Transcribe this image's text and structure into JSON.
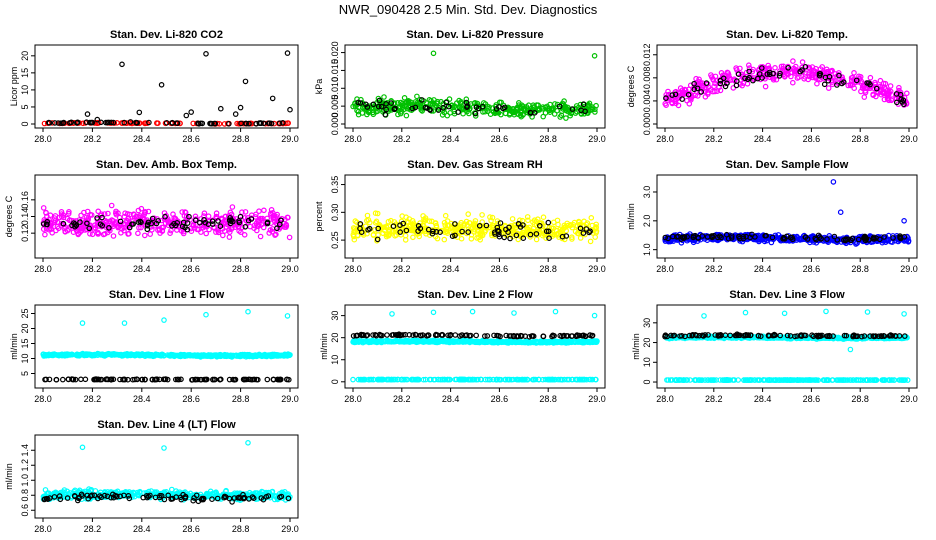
{
  "title": "NWR_090428  2.5 Min. Std. Dev. Diagnostics",
  "colors": {
    "black": "#000000",
    "red": "#ff0000",
    "green": "#00c000",
    "magenta": "#ff00ff",
    "yellow": "#ffff00",
    "blue": "#0000ff",
    "cyan": "#00ffff"
  },
  "chart_data": [
    {
      "type": "scatter",
      "title": "Stan. Dev. Li-820 CO2",
      "ylabel": "Licor ppm",
      "xlim": [
        28.0,
        29.0
      ],
      "ylim": [
        0,
        22
      ],
      "xticks": [
        "28.0",
        "28.2",
        "28.4",
        "28.6",
        "28.8",
        "29.0"
      ],
      "yticks": [
        "0",
        "5",
        "10",
        "15",
        "20"
      ],
      "series": [
        {
          "color": "red",
          "pattern": {
            "base": 0.2,
            "amp": 0.2,
            "noise": 0.15,
            "n": 100,
            "seed": 1
          }
        },
        {
          "color": "black",
          "pattern": {
            "base": 0.3,
            "amp": 0.3,
            "noise": 0.2,
            "n": 60,
            "seed": 2
          },
          "outliers": [
            [
              28.18,
              2.9
            ],
            [
              28.22,
              1.3
            ],
            [
              28.32,
              17.5
            ],
            [
              28.39,
              3.4
            ],
            [
              28.48,
              11.5
            ],
            [
              28.58,
              2.5
            ],
            [
              28.6,
              3.5
            ],
            [
              28.66,
              20.6
            ],
            [
              28.72,
              4.5
            ],
            [
              28.78,
              2.9
            ],
            [
              28.8,
              4.8
            ],
            [
              28.82,
              12.5
            ],
            [
              28.93,
              7.5
            ],
            [
              28.99,
              20.8
            ],
            [
              29.0,
              4.2
            ]
          ]
        }
      ]
    },
    {
      "type": "scatter",
      "title": "Stan. Dev. Li-820 Pressure",
      "ylabel": "kPa",
      "xlim": [
        28.0,
        29.0
      ],
      "ylim": [
        0,
        0.021
      ],
      "xticks": [
        "28.0",
        "28.2",
        "28.4",
        "28.6",
        "28.8",
        "29.0"
      ],
      "yticks": [
        "0.000",
        "0.005",
        "0.010",
        "0.015",
        "0.020"
      ],
      "series": [
        {
          "color": "green",
          "pattern": {
            "base": 0.0045,
            "amp": 0.001,
            "noise": 0.003,
            "n": 360,
            "seed": 3
          },
          "outliers": [
            [
              28.33,
              0.0198
            ],
            [
              28.99,
              0.0191
            ]
          ]
        },
        {
          "color": "black",
          "pattern": {
            "base": 0.0045,
            "amp": 0.001,
            "noise": 0.003,
            "n": 45,
            "seed": 4
          }
        }
      ]
    },
    {
      "type": "scatter",
      "title": "Stan. Dev. Li-820 Temp.",
      "ylabel": "degrees C",
      "xlim": [
        28.0,
        29.0
      ],
      "ylim": [
        0,
        0.013
      ],
      "xticks": [
        "28.0",
        "28.2",
        "28.4",
        "28.6",
        "28.8",
        "29.0"
      ],
      "yticks": [
        "0.000",
        "0.004",
        "0.008",
        "0.012"
      ],
      "series": [
        {
          "color": "magenta",
          "pattern": {
            "base": 0.004,
            "amp": 0.005,
            "shape": "arch",
            "noise": 0.0025,
            "n": 380,
            "seed": 5
          }
        },
        {
          "color": "black",
          "pattern": {
            "base": 0.004,
            "amp": 0.005,
            "shape": "arch",
            "noise": 0.0018,
            "n": 60,
            "seed": 6
          }
        }
      ]
    },
    {
      "type": "scatter",
      "title": "Stan. Dev. Amb. Box Temp.",
      "ylabel": "degrees C",
      "xlim": [
        28.0,
        29.0
      ],
      "ylim": [
        0.095,
        0.185
      ],
      "xticks": [
        "28.0",
        "28.2",
        "28.4",
        "28.6",
        "28.8",
        "29.0"
      ],
      "yticks": [
        "0.12",
        "0.14",
        "0.16"
      ],
      "series": [
        {
          "color": "magenta",
          "pattern": {
            "base": 0.133,
            "amp": 0.0,
            "noise": 0.022,
            "n": 420,
            "seed": 7
          }
        },
        {
          "color": "black",
          "pattern": {
            "base": 0.131,
            "amp": 0.0,
            "noise": 0.012,
            "n": 70,
            "seed": 8
          }
        }
      ]
    },
    {
      "type": "scatter",
      "title": "Stan. Dev. Gas Stream RH",
      "ylabel": "percent",
      "xlim": [
        28.0,
        29.0
      ],
      "ylim": [
        0.225,
        0.36
      ],
      "xticks": [
        "28.0",
        "28.2",
        "28.4",
        "28.6",
        "28.8",
        "29.0"
      ],
      "yticks": [
        "0.25",
        "0.30",
        "0.35"
      ],
      "series": [
        {
          "color": "yellow",
          "pattern": {
            "base": 0.27,
            "amp": 0.0,
            "noise": 0.03,
            "n": 420,
            "seed": 9
          }
        },
        {
          "color": "black",
          "pattern": {
            "base": 0.268,
            "amp": 0.0,
            "noise": 0.022,
            "n": 60,
            "seed": 10
          }
        }
      ]
    },
    {
      "type": "scatter",
      "title": "Stan. Dev. Sample Flow",
      "ylabel": "ml/min",
      "xlim": [
        28.0,
        29.0
      ],
      "ylim": [
        0.85,
        3.45
      ],
      "xticks": [
        "28.0",
        "28.2",
        "28.4",
        "28.6",
        "28.8",
        "29.0"
      ],
      "yticks": [
        "1.0",
        "2.0",
        "3.0"
      ],
      "series": [
        {
          "color": "blue",
          "pattern": {
            "base": 1.38,
            "amp": 0.08,
            "noise": 0.17,
            "n": 480,
            "seed": 11
          },
          "outliers": [
            [
              28.69,
              3.35
            ],
            [
              28.98,
              2.0
            ],
            [
              28.72,
              2.3
            ]
          ]
        },
        {
          "color": "black",
          "pattern": {
            "base": 1.42,
            "amp": 0.05,
            "noise": 0.12,
            "n": 90,
            "seed": 12
          }
        }
      ]
    },
    {
      "type": "scatter",
      "title": "Stan. Dev. Line 1 Flow",
      "ylabel": "ml/min",
      "xlim": [
        28.0,
        29.0
      ],
      "ylim": [
        1.5,
        26.5
      ],
      "xticks": [
        "28.0",
        "28.2",
        "28.4",
        "28.6",
        "28.8",
        "29.0"
      ],
      "yticks": [
        "5",
        "10",
        "15",
        "20",
        "25"
      ],
      "series": [
        {
          "color": "cyan",
          "pattern": {
            "base": 11.1,
            "amp": 0.3,
            "noise": 0.5,
            "n": 500,
            "seed": 13
          },
          "outliers": [
            [
              28.16,
              21.8
            ],
            [
              28.33,
              21.8
            ],
            [
              28.49,
              22.8
            ],
            [
              28.66,
              24.6
            ],
            [
              28.83,
              25.6
            ],
            [
              28.99,
              24.2
            ]
          ]
        },
        {
          "color": "black",
          "pattern": {
            "base": 3.0,
            "amp": 0.05,
            "noise": 0.15,
            "n": 110,
            "seed": 14
          }
        }
      ]
    },
    {
      "type": "scatter",
      "title": "Stan. Dev. Line 2 Flow",
      "ylabel": "ml/min",
      "xlim": [
        28.0,
        29.0
      ],
      "ylim": [
        -1,
        33
      ],
      "xticks": [
        "28.0",
        "28.2",
        "28.4",
        "28.6",
        "28.8",
        "29.0"
      ],
      "yticks": [
        "0",
        "10",
        "20",
        "30"
      ],
      "series": [
        {
          "color": "cyan",
          "pattern": {
            "base": 18.2,
            "amp": 0.4,
            "noise": 0.6,
            "n": 500,
            "seed": 15
          },
          "outliers": [
            [
              28.16,
              30.8
            ],
            [
              28.33,
              31.5
            ],
            [
              28.49,
              31.8
            ],
            [
              28.66,
              31.2
            ],
            [
              28.83,
              31.8
            ],
            [
              28.99,
              30.0
            ]
          ]
        },
        {
          "color": "cyan",
          "pattern": {
            "base": 1.0,
            "amp": 0.0,
            "noise": 0.1,
            "n": 200,
            "seed": 16
          }
        },
        {
          "color": "black",
          "pattern": {
            "base": 21.0,
            "amp": 0.6,
            "noise": 0.5,
            "n": 110,
            "seed": 17
          }
        }
      ]
    },
    {
      "type": "scatter",
      "title": "Stan. Dev. Line 3 Flow",
      "ylabel": "ml/min",
      "xlim": [
        28.0,
        29.0
      ],
      "ylim": [
        -1,
        37
      ],
      "xticks": [
        "28.0",
        "28.2",
        "28.4",
        "28.6",
        "28.8",
        "29.0"
      ],
      "yticks": [
        "0",
        "10",
        "20",
        "30"
      ],
      "series": [
        {
          "color": "cyan",
          "pattern": {
            "base": 22.5,
            "amp": 0.4,
            "noise": 0.7,
            "n": 500,
            "seed": 18
          },
          "outliers": [
            [
              28.16,
              33.5
            ],
            [
              28.33,
              35.2
            ],
            [
              28.49,
              34.8
            ],
            [
              28.66,
              35.8
            ],
            [
              28.76,
              16.5
            ],
            [
              28.83,
              35.5
            ],
            [
              28.98,
              34.5
            ]
          ]
        },
        {
          "color": "cyan",
          "pattern": {
            "base": 1.0,
            "amp": 0.0,
            "noise": 0.1,
            "n": 200,
            "seed": 19
          }
        },
        {
          "color": "black",
          "pattern": {
            "base": 23.5,
            "amp": 0.4,
            "noise": 0.6,
            "n": 110,
            "seed": 20
          }
        }
      ]
    },
    {
      "type": "scatter",
      "title": "Stan. Dev. Line 4 (LT) Flow",
      "ylabel": "ml/min",
      "xlim": [
        28.0,
        29.0
      ],
      "ylim": [
        0.55,
        1.55
      ],
      "xticks": [
        "28.0",
        "28.2",
        "28.4",
        "28.6",
        "28.8",
        "29.0"
      ],
      "yticks": [
        "0.6",
        "0.8",
        "1.0",
        "1.2",
        "1.4"
      ],
      "series": [
        {
          "color": "cyan",
          "pattern": {
            "base": 0.8,
            "amp": 0.02,
            "noise": 0.08,
            "n": 480,
            "seed": 21
          },
          "outliers": [
            [
              28.16,
              1.44
            ],
            [
              28.49,
              1.43
            ],
            [
              28.83,
              1.5
            ]
          ]
        },
        {
          "color": "black",
          "pattern": {
            "base": 0.77,
            "amp": 0.02,
            "noise": 0.06,
            "n": 90,
            "seed": 22
          }
        }
      ]
    }
  ]
}
